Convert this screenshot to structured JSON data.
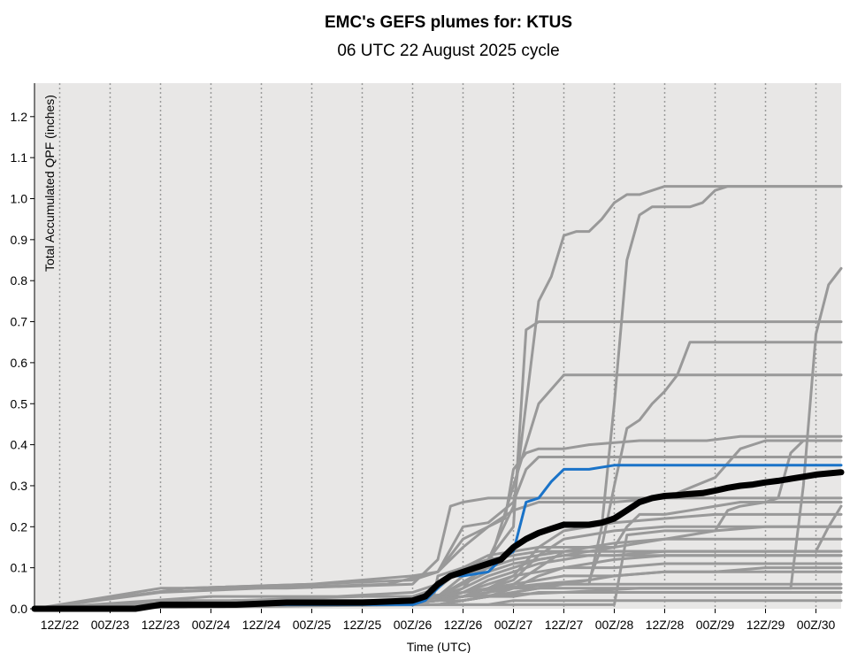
{
  "chart_data": {
    "type": "line",
    "title": "EMC's GEFS plumes for: KTUS",
    "subtitle": "06 UTC 22 August 2025 cycle",
    "xlabel": "Time (UTC)",
    "ylabel": "Total Accumulated QPF (inches)",
    "x_unit": "forecast hours after 06 UTC 22 August 2025",
    "xlim": [
      0,
      192
    ],
    "ylim": [
      0,
      1.28
    ],
    "x_ticks": [
      {
        "x": 6,
        "label": "12Z/22"
      },
      {
        "x": 18,
        "label": "00Z/23"
      },
      {
        "x": 30,
        "label": "12Z/23"
      },
      {
        "x": 42,
        "label": "00Z/24"
      },
      {
        "x": 54,
        "label": "12Z/24"
      },
      {
        "x": 66,
        "label": "00Z/25"
      },
      {
        "x": 78,
        "label": "12Z/25"
      },
      {
        "x": 90,
        "label": "00Z/26"
      },
      {
        "x": 102,
        "label": "12Z/26"
      },
      {
        "x": 114,
        "label": "00Z/27"
      },
      {
        "x": 126,
        "label": "12Z/27"
      },
      {
        "x": 138,
        "label": "00Z/28"
      },
      {
        "x": 150,
        "label": "12Z/28"
      },
      {
        "x": 162,
        "label": "00Z/29"
      },
      {
        "x": 174,
        "label": "12Z/29"
      },
      {
        "x": 186,
        "label": "00Z/30"
      }
    ],
    "y_ticks": [
      {
        "y": 0.0,
        "label": "0.0"
      },
      {
        "y": 0.1,
        "label": "0.1"
      },
      {
        "y": 0.2,
        "label": "0.2"
      },
      {
        "y": 0.3,
        "label": "0.3"
      },
      {
        "y": 0.4,
        "label": "0.4"
      },
      {
        "y": 0.5,
        "label": "0.5"
      },
      {
        "y": 0.6,
        "label": "0.6"
      },
      {
        "y": 0.7,
        "label": "0.7"
      },
      {
        "y": 0.8,
        "label": "0.8"
      },
      {
        "y": 0.9,
        "label": "0.9"
      },
      {
        "y": 1.0,
        "label": "1.0"
      },
      {
        "y": 1.1,
        "label": "1.1"
      },
      {
        "y": 1.2,
        "label": "1.2"
      }
    ],
    "grid": "vertical dotted lines at each x tick",
    "colors": {
      "plot_background": "#e8e7e6",
      "member": "#999999",
      "control": "#1a73c8",
      "mean": "#000000",
      "vertical_grid": "#9a9a9a"
    },
    "members": [
      {
        "x": [
          0,
          24,
          54,
          84,
          91,
          95,
          96,
          102,
          108,
          114,
          117,
          120,
          126,
          135,
          150,
          165,
          180,
          192
        ],
        "y": [
          0,
          0.01,
          0.01,
          0.01,
          0.02,
          0.03,
          0.08,
          0.1,
          0.12,
          0.2,
          0.68,
          0.7,
          0.7,
          0.7,
          0.7,
          0.7,
          0.7,
          0.7
        ]
      },
      {
        "x": [
          0,
          24,
          48,
          84,
          96,
          102,
          108,
          114,
          117,
          120,
          123,
          126,
          129,
          132,
          135,
          138,
          141,
          144,
          150,
          165,
          180,
          192
        ],
        "y": [
          0,
          0.01,
          0.02,
          0.02,
          0.03,
          0.05,
          0.12,
          0.25,
          0.5,
          0.75,
          0.81,
          0.91,
          0.92,
          0.92,
          0.95,
          0.99,
          1.01,
          1.01,
          1.03,
          1.03,
          1.03,
          1.03
        ]
      },
      {
        "x": [
          0,
          36,
          84,
          96,
          108,
          126,
          132,
          135,
          138,
          141,
          144,
          147,
          150,
          156,
          159,
          162,
          165,
          168,
          180,
          192
        ],
        "y": [
          0,
          0.01,
          0.02,
          0.03,
          0.05,
          0.06,
          0.06,
          0.2,
          0.5,
          0.85,
          0.96,
          0.98,
          0.98,
          0.98,
          0.99,
          1.02,
          1.03,
          1.03,
          1.03,
          1.03
        ]
      },
      {
        "x": [
          0,
          36,
          84,
          102,
          126,
          144,
          150,
          156,
          162,
          165,
          168,
          174,
          180,
          183,
          186,
          189,
          192
        ],
        "y": [
          0,
          0.01,
          0.02,
          0.03,
          0.04,
          0.05,
          0.05,
          0.05,
          0.05,
          0.05,
          0.05,
          0.05,
          0.05,
          0.3,
          0.67,
          0.79,
          0.83
        ]
      },
      {
        "x": [
          0,
          30,
          84,
          96,
          108,
          114,
          117,
          120,
          126,
          144,
          150,
          192
        ],
        "y": [
          0,
          0.02,
          0.02,
          0.03,
          0.1,
          0.3,
          0.4,
          0.5,
          0.57,
          0.57,
          0.57,
          0.57
        ]
      },
      {
        "x": [
          0,
          30,
          84,
          102,
          120,
          132,
          135,
          138,
          141,
          144,
          147,
          150,
          153,
          156,
          192
        ],
        "y": [
          0,
          0.01,
          0.02,
          0.04,
          0.06,
          0.07,
          0.15,
          0.3,
          0.44,
          0.46,
          0.5,
          0.53,
          0.57,
          0.65,
          0.65
        ]
      },
      {
        "x": [
          0,
          30,
          54,
          84,
          96,
          102,
          108,
          114,
          117,
          120,
          126,
          132,
          144,
          192
        ],
        "y": [
          0,
          0.04,
          0.05,
          0.06,
          0.09,
          0.2,
          0.21,
          0.26,
          0.34,
          0.37,
          0.37,
          0.37,
          0.37,
          0.37
        ]
      },
      {
        "x": [
          0,
          30,
          60,
          90,
          96,
          99,
          102,
          108,
          114,
          120,
          126,
          138,
          150,
          162,
          174,
          192
        ],
        "y": [
          0,
          0.05,
          0.05,
          0.06,
          0.12,
          0.25,
          0.26,
          0.27,
          0.27,
          0.27,
          0.27,
          0.27,
          0.27,
          0.27,
          0.27,
          0.27
        ]
      },
      {
        "x": [
          0,
          36,
          66,
          90,
          96,
          102,
          108,
          112,
          114,
          117,
          120,
          126,
          132,
          144,
          150,
          160,
          168,
          180,
          192
        ],
        "y": [
          0,
          0.05,
          0.06,
          0.08,
          0.09,
          0.15,
          0.2,
          0.22,
          0.34,
          0.38,
          0.39,
          0.39,
          0.4,
          0.41,
          0.41,
          0.41,
          0.42,
          0.42,
          0.42
        ]
      },
      {
        "x": [
          0,
          36,
          66,
          90,
          96,
          102,
          108,
          114,
          120,
          126,
          138,
          150,
          162,
          168,
          174,
          192
        ],
        "y": [
          0,
          0.05,
          0.06,
          0.07,
          0.09,
          0.17,
          0.2,
          0.24,
          0.26,
          0.26,
          0.26,
          0.27,
          0.32,
          0.39,
          0.41,
          0.41
        ]
      },
      {
        "x": [
          0,
          42,
          72,
          90,
          96,
          102,
          108,
          114,
          120,
          126,
          132,
          138,
          141,
          144,
          150,
          156,
          162,
          168,
          174,
          177,
          180,
          183,
          186,
          192
        ],
        "y": [
          0,
          0.03,
          0.03,
          0.04,
          0.06,
          0.1,
          0.13,
          0.14,
          0.15,
          0.15,
          0.15,
          0.15,
          0.2,
          0.23,
          0.23,
          0.24,
          0.25,
          0.26,
          0.26,
          0.27,
          0.38,
          0.41,
          0.41,
          0.41
        ]
      },
      {
        "x": [
          0,
          48,
          78,
          90,
          96,
          102,
          108,
          114,
          120,
          126,
          132,
          138,
          150,
          162,
          174,
          180,
          186,
          192
        ],
        "y": [
          0,
          0.02,
          0.03,
          0.03,
          0.05,
          0.1,
          0.12,
          0.13,
          0.14,
          0.14,
          0.14,
          0.14,
          0.14,
          0.14,
          0.14,
          0.14,
          0.14,
          0.14
        ]
      },
      {
        "x": [
          0,
          48,
          84,
          96,
          102,
          108,
          114,
          120,
          126,
          138,
          150,
          162,
          174,
          186,
          192
        ],
        "y": [
          0,
          0.02,
          0.02,
          0.03,
          0.08,
          0.1,
          0.12,
          0.13,
          0.14,
          0.14,
          0.14,
          0.14,
          0.14,
          0.14,
          0.14
        ]
      },
      {
        "x": [
          0,
          48,
          84,
          96,
          102,
          108,
          114,
          120,
          126,
          138,
          150,
          162,
          174,
          186,
          192
        ],
        "y": [
          0,
          0.02,
          0.02,
          0.03,
          0.06,
          0.09,
          0.11,
          0.12,
          0.13,
          0.13,
          0.13,
          0.13,
          0.13,
          0.13,
          0.13
        ]
      },
      {
        "x": [
          0,
          54,
          84,
          96,
          102,
          108,
          114,
          120,
          126,
          138,
          150,
          162,
          174,
          186,
          192
        ],
        "y": [
          0,
          0.01,
          0.02,
          0.02,
          0.04,
          0.06,
          0.08,
          0.09,
          0.1,
          0.1,
          0.11,
          0.11,
          0.11,
          0.11,
          0.11
        ]
      },
      {
        "x": [
          0,
          54,
          84,
          96,
          102,
          108,
          114,
          120,
          126,
          138,
          150,
          162,
          174,
          186,
          192
        ],
        "y": [
          0,
          0.01,
          0.01,
          0.02,
          0.03,
          0.05,
          0.06,
          0.07,
          0.08,
          0.08,
          0.09,
          0.09,
          0.09,
          0.09,
          0.09
        ]
      },
      {
        "x": [
          0,
          54,
          84,
          96,
          102,
          108,
          114,
          120,
          126,
          138,
          150,
          162,
          174,
          186,
          192
        ],
        "y": [
          0,
          0.01,
          0.01,
          0.02,
          0.03,
          0.04,
          0.05,
          0.05,
          0.06,
          0.06,
          0.06,
          0.06,
          0.06,
          0.06,
          0.06
        ]
      },
      {
        "x": [
          0,
          54,
          84,
          96,
          102,
          108,
          114,
          120,
          126,
          138,
          150,
          162,
          174,
          186,
          192
        ],
        "y": [
          0,
          0.01,
          0.01,
          0.01,
          0.02,
          0.03,
          0.04,
          0.05,
          0.05,
          0.05,
          0.05,
          0.05,
          0.05,
          0.05,
          0.05
        ]
      },
      {
        "x": [
          0,
          54,
          84,
          96,
          102,
          108,
          114,
          120,
          126,
          138,
          150,
          162,
          174,
          186,
          192
        ],
        "y": [
          0,
          0.01,
          0.01,
          0.01,
          0.02,
          0.03,
          0.03,
          0.04,
          0.04,
          0.04,
          0.04,
          0.04,
          0.04,
          0.04,
          0.04
        ]
      },
      {
        "x": [
          0,
          60,
          90,
          96,
          108,
          114,
          120,
          126,
          132,
          138,
          150,
          162,
          174,
          186,
          192
        ],
        "y": [
          0,
          0.01,
          0.01,
          0.01,
          0.01,
          0.02,
          0.02,
          0.02,
          0.02,
          0.02,
          0.02,
          0.02,
          0.02,
          0.02,
          0.02
        ]
      },
      {
        "x": [
          0,
          96,
          108,
          114,
          120,
          126,
          132,
          138,
          141,
          150,
          162,
          174,
          186,
          192
        ],
        "y": [
          0,
          0.01,
          0.01,
          0.01,
          0.01,
          0.01,
          0.01,
          0.01,
          0.18,
          0.19,
          0.19,
          0.2,
          0.2,
          0.2
        ]
      },
      {
        "x": [
          0,
          84,
          96,
          102,
          108,
          114,
          120,
          126,
          132,
          138,
          144,
          150,
          156,
          162,
          165,
          168,
          174,
          180,
          186,
          192
        ],
        "y": [
          0,
          0.01,
          0.02,
          0.05,
          0.08,
          0.1,
          0.12,
          0.13,
          0.14,
          0.15,
          0.16,
          0.17,
          0.18,
          0.19,
          0.24,
          0.25,
          0.26,
          0.26,
          0.26,
          0.26
        ]
      },
      {
        "x": [
          0,
          84,
          96,
          102,
          108,
          114,
          120,
          126,
          132,
          138,
          150,
          162,
          174,
          180,
          186,
          189,
          192
        ],
        "y": [
          0,
          0.01,
          0.02,
          0.04,
          0.07,
          0.09,
          0.11,
          0.12,
          0.13,
          0.13,
          0.14,
          0.14,
          0.14,
          0.14,
          0.14,
          0.2,
          0.25
        ]
      },
      {
        "x": [
          0,
          84,
          96,
          102,
          108,
          114,
          120,
          126,
          132,
          138,
          150,
          162,
          174,
          192
        ],
        "y": [
          0,
          0.01,
          0.02,
          0.03,
          0.05,
          0.08,
          0.15,
          0.19,
          0.2,
          0.21,
          0.22,
          0.23,
          0.23,
          0.23
        ]
      },
      {
        "x": [
          0,
          84,
          96,
          102,
          108,
          114,
          120,
          126,
          132,
          138,
          150,
          162,
          174,
          192
        ],
        "y": [
          0,
          0.01,
          0.02,
          0.03,
          0.05,
          0.07,
          0.13,
          0.17,
          0.18,
          0.19,
          0.2,
          0.2,
          0.2,
          0.2
        ]
      },
      {
        "x": [
          0,
          84,
          96,
          102,
          108,
          114,
          120,
          126,
          132,
          138,
          150,
          162,
          174,
          192
        ],
        "y": [
          0,
          0.01,
          0.02,
          0.03,
          0.04,
          0.06,
          0.1,
          0.14,
          0.15,
          0.16,
          0.17,
          0.17,
          0.17,
          0.17
        ]
      },
      {
        "x": [
          0,
          84,
          96,
          102,
          108,
          114,
          120,
          126,
          132,
          138,
          150,
          162,
          174,
          192
        ],
        "y": [
          0,
          0.01,
          0.02,
          0.02,
          0.03,
          0.05,
          0.08,
          0.1,
          0.11,
          0.12,
          0.13,
          0.13,
          0.13,
          0.13
        ]
      },
      {
        "x": [
          0,
          84,
          96,
          102,
          108,
          114,
          120,
          126,
          132,
          138,
          150,
          162,
          174,
          192
        ],
        "y": [
          0,
          0.01,
          0.01,
          0.02,
          0.03,
          0.04,
          0.05,
          0.06,
          0.07,
          0.08,
          0.09,
          0.09,
          0.1,
          0.1
        ]
      }
    ],
    "control": {
      "name": "",
      "x": [
        0,
        24,
        30,
        48,
        60,
        78,
        90,
        93,
        96,
        99,
        102,
        108,
        111,
        114,
        117,
        120,
        123,
        126,
        132,
        138,
        150,
        162,
        174,
        186,
        192
      ],
      "y": [
        0,
        0,
        0.01,
        0.01,
        0.01,
        0.01,
        0.01,
        0.02,
        0.05,
        0.08,
        0.08,
        0.09,
        0.12,
        0.14,
        0.26,
        0.27,
        0.31,
        0.34,
        0.34,
        0.35,
        0.35,
        0.35,
        0.35,
        0.35,
        0.35
      ]
    },
    "mean": {
      "name": "",
      "x": [
        0,
        24,
        30,
        48,
        60,
        78,
        90,
        93,
        96,
        99,
        102,
        105,
        108,
        111,
        114,
        117,
        120,
        123,
        126,
        129,
        132,
        135,
        138,
        141,
        144,
        147,
        150,
        153,
        156,
        159,
        162,
        165,
        168,
        171,
        174,
        177,
        180,
        183,
        186,
        189,
        192
      ],
      "y": [
        0,
        0,
        0.01,
        0.01,
        0.015,
        0.015,
        0.02,
        0.03,
        0.06,
        0.08,
        0.09,
        0.1,
        0.11,
        0.12,
        0.15,
        0.17,
        0.185,
        0.195,
        0.205,
        0.205,
        0.205,
        0.21,
        0.22,
        0.24,
        0.26,
        0.27,
        0.275,
        0.277,
        0.28,
        0.282,
        0.288,
        0.295,
        0.3,
        0.303,
        0.308,
        0.312,
        0.317,
        0.322,
        0.327,
        0.33,
        0.333
      ]
    }
  }
}
